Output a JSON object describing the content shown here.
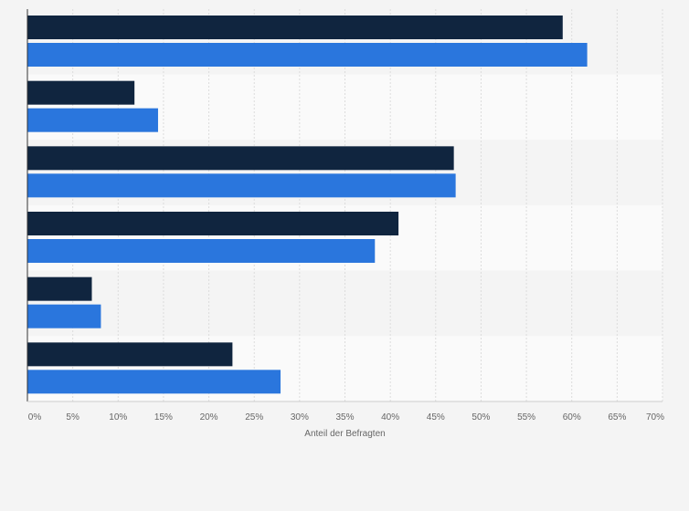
{
  "chart_data": {
    "type": "bar",
    "orientation": "horizontal",
    "title": "",
    "xlabel": "Anteil der Befragten",
    "ylabel": "",
    "categories": [
      "",
      "",
      "",
      "",
      "",
      ""
    ],
    "series": [
      {
        "values": [
          59,
          11.8,
          47,
          40.9,
          7.1,
          22.6
        ],
        "color": "#10253f"
      },
      {
        "values": [
          61.7,
          14.4,
          47.2,
          38.3,
          8.1,
          27.9
        ],
        "color": "#2a76dd"
      }
    ],
    "xlim": [
      0,
      70
    ],
    "xticks": [
      "0%",
      "5%",
      "10%",
      "15%",
      "20%",
      "25%",
      "30%",
      "35%",
      "40%",
      "45%",
      "50%",
      "55%",
      "60%",
      "65%",
      "70%"
    ],
    "grid": true,
    "legend": "none"
  }
}
